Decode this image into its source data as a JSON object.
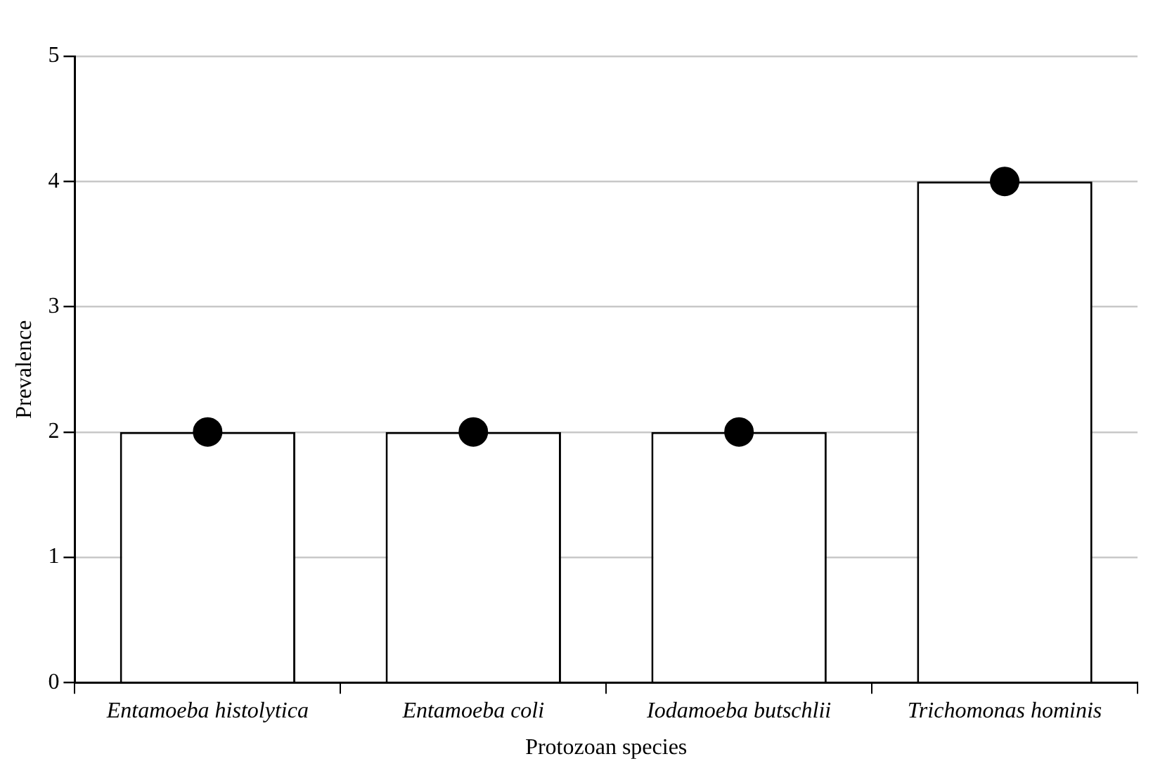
{
  "chart_data": {
    "type": "bar",
    "xlabel": "Protozoan species",
    "ylabel": "Prevalence",
    "categories": [
      "Entamoeba histolytica",
      "Entamoeba coli",
      "Iodamoeba butschlii",
      "Trichomonas hominis"
    ],
    "series": [
      {
        "color": "#ffffff",
        "values": [
          2,
          2,
          2,
          4
        ]
      },
      {
        "type": "scatter",
        "color": "#000000",
        "x": [
          "Entamoeba histolytica",
          "Entamoeba coli",
          "Iodamoeba butschlii",
          "Trichomonas hominis"
        ],
        "values": [
          2,
          2,
          2,
          4
        ],
        "marker": "circle"
      }
    ],
    "ylim": [
      0,
      5
    ],
    "yticks": [
      0,
      1,
      2,
      3,
      4,
      5
    ],
    "grid": "y",
    "legend": false
  }
}
